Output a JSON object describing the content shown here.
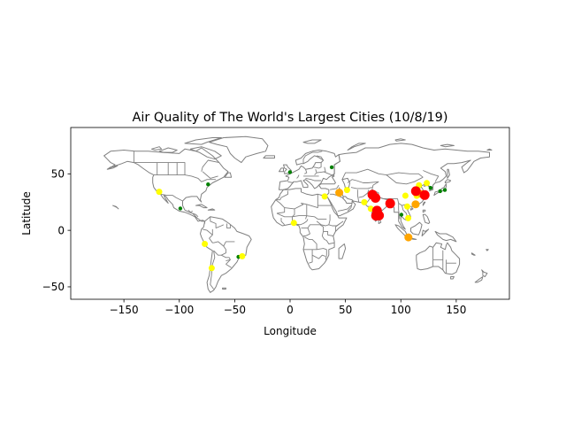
{
  "chart_data": {
    "type": "scatter",
    "title": "Air Quality of The World's Largest Cities (10/8/19)",
    "xlabel": "Longitude",
    "ylabel": "Latitude",
    "xlim": [
      -198,
      198
    ],
    "ylim": [
      -61,
      91
    ],
    "xticks": [
      -150,
      -100,
      -50,
      0,
      50,
      100,
      150
    ],
    "yticks": [
      -50,
      0,
      50
    ],
    "grid": false,
    "legend": "none",
    "background_layer": "world country borders",
    "map_color": "#808080",
    "colors": {
      "green": "#008000",
      "yellow": "#ffff00",
      "orange": "#ffa500",
      "red": "#ff0000"
    },
    "points": [
      {
        "lon": -118.2,
        "lat": 34.1,
        "color": "yellow"
      },
      {
        "lon": -74.0,
        "lat": 40.7,
        "color": "green"
      },
      {
        "lon": -99.1,
        "lat": 19.4,
        "color": "green"
      },
      {
        "lon": -77.0,
        "lat": -12.0,
        "color": "yellow"
      },
      {
        "lon": -70.7,
        "lat": -33.4,
        "color": "yellow"
      },
      {
        "lon": -46.6,
        "lat": -23.5,
        "color": "green"
      },
      {
        "lon": -43.2,
        "lat": -22.9,
        "color": "yellow"
      },
      {
        "lon": -0.1,
        "lat": 51.5,
        "color": "green"
      },
      {
        "lon": 37.6,
        "lat": 55.8,
        "color": "green"
      },
      {
        "lon": 3.4,
        "lat": 6.5,
        "color": "yellow"
      },
      {
        "lon": 31.2,
        "lat": 30.0,
        "color": "yellow"
      },
      {
        "lon": 44.4,
        "lat": 33.3,
        "color": "orange"
      },
      {
        "lon": 51.4,
        "lat": 35.7,
        "color": "yellow"
      },
      {
        "lon": 67.0,
        "lat": 24.9,
        "color": "yellow"
      },
      {
        "lon": 74.3,
        "lat": 31.5,
        "color": "red"
      },
      {
        "lon": 77.1,
        "lat": 28.7,
        "color": "red"
      },
      {
        "lon": 72.9,
        "lat": 19.1,
        "color": "yellow"
      },
      {
        "lon": 77.6,
        "lat": 13.0,
        "color": "red"
      },
      {
        "lon": 80.3,
        "lat": 13.1,
        "color": "red"
      },
      {
        "lon": 78.5,
        "lat": 17.4,
        "color": "red"
      },
      {
        "lon": 90.4,
        "lat": 23.8,
        "color": "red"
      },
      {
        "lon": 100.5,
        "lat": 13.8,
        "color": "green"
      },
      {
        "lon": 106.8,
        "lat": -6.2,
        "color": "orange"
      },
      {
        "lon": 105.8,
        "lat": 21.0,
        "color": "yellow"
      },
      {
        "lon": 106.7,
        "lat": 10.8,
        "color": "yellow"
      },
      {
        "lon": 113.3,
        "lat": 23.1,
        "color": "orange"
      },
      {
        "lon": 114.1,
        "lat": 22.5,
        "color": "yellow"
      },
      {
        "lon": 114.3,
        "lat": 30.6,
        "color": "yellow"
      },
      {
        "lon": 116.4,
        "lat": 39.9,
        "color": "yellow"
      },
      {
        "lon": 113.6,
        "lat": 34.7,
        "color": "red"
      },
      {
        "lon": 117.2,
        "lat": 39.1,
        "color": "green"
      },
      {
        "lon": 121.5,
        "lat": 31.2,
        "color": "red"
      },
      {
        "lon": 118.8,
        "lat": 32.1,
        "color": "orange"
      },
      {
        "lon": 123.4,
        "lat": 41.8,
        "color": "yellow"
      },
      {
        "lon": 126.9,
        "lat": 37.6,
        "color": "green"
      },
      {
        "lon": 139.7,
        "lat": 35.7,
        "color": "green"
      },
      {
        "lon": 135.5,
        "lat": 34.7,
        "color": "green"
      },
      {
        "lon": 104.1,
        "lat": 30.7,
        "color": "yellow"
      }
    ]
  }
}
